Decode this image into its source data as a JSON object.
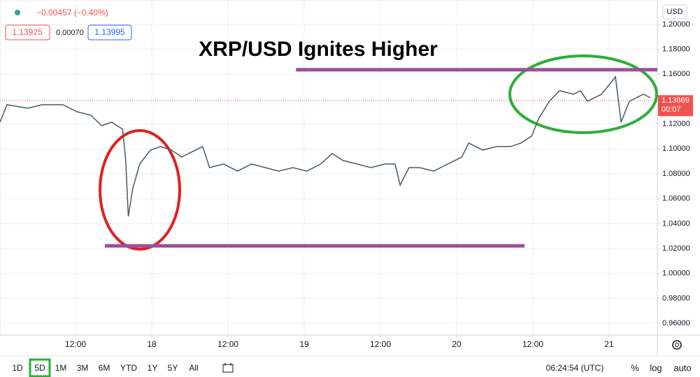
{
  "header": {
    "change": "−0.00457 (−0.40%)",
    "bid": "1.13925",
    "spread": "0.00070",
    "ask": "1.13995",
    "currency": "USD"
  },
  "chart_data": {
    "type": "line",
    "title": "XRP/USD Ignites Higher",
    "color": "#4a5a66",
    "x": [
      -23.9,
      -22.8,
      -19.5,
      -17.3,
      -14.0,
      -11.8,
      -9.6,
      -7.9,
      -6.3,
      -4.6,
      -4.1,
      -3.7,
      -3.0,
      -1.9,
      -0.2,
      1.4,
      3.1,
      4.7,
      6.9,
      8.0,
      9.1,
      11.3,
      13.5,
      15.7,
      17.9,
      20.0,
      22.2,
      24.4,
      26.6,
      28.4,
      30.1,
      32.3,
      34.5,
      36.7,
      38.3,
      39.1,
      40.5,
      42.2,
      44.4,
      46.6,
      48.8,
      49.9,
      52.1,
      54.3,
      56.5,
      58.1,
      59.8,
      60.9,
      62.6,
      64.2,
      66.4,
      67.5,
      68.6,
      70.8,
      73.0,
      73.9,
      75.2,
      77.4,
      78.5
    ],
    "values": [
      1.1215,
      1.1355,
      1.1327,
      1.1355,
      1.1355,
      1.1299,
      1.1271,
      1.1187,
      1.1215,
      1.1159,
      1.0907,
      1.0458,
      1.0682,
      1.0879,
      1.0991,
      1.1019,
      1.0991,
      1.0935,
      1.0991,
      1.1019,
      1.085,
      1.0879,
      1.0822,
      1.0879,
      1.085,
      1.0822,
      1.085,
      1.0822,
      1.0879,
      1.0963,
      1.0907,
      1.0879,
      1.085,
      1.0879,
      1.0879,
      1.071,
      1.085,
      1.085,
      1.0822,
      1.0879,
      1.0935,
      1.1047,
      1.0991,
      1.1019,
      1.1019,
      1.1047,
      1.1103,
      1.1243,
      1.1383,
      1.1467,
      1.1439,
      1.1467,
      1.1383,
      1.1439,
      1.1579,
      1.1215,
      1.1383,
      1.1439,
      1.1411
    ],
    "last_price": 1.13869,
    "countdown": "00:07",
    "levels": [
      {
        "y": 1.1636,
        "x": [
          22.7,
          79.6
        ],
        "color": "#9b4f9b"
      },
      {
        "y": 1.0222,
        "x": [
          -7.4,
          58.7
        ],
        "color": "#9b4f9b"
      }
    ],
    "xlim": [
      -23.9,
      79.6
    ],
    "xticks": [
      {
        "value": -12,
        "label": "12:00"
      },
      {
        "value": 0,
        "label": "18"
      },
      {
        "value": 12,
        "label": "12:00"
      },
      {
        "value": 24,
        "label": "19"
      },
      {
        "value": 36,
        "label": "12:00"
      },
      {
        "value": 48,
        "label": "20"
      },
      {
        "value": 60,
        "label": "12:00"
      },
      {
        "value": 72,
        "label": "21"
      }
    ],
    "ylim": [
      0.9505,
      1.2196
    ],
    "yticks": [
      {
        "value": 0.96,
        "label": "0.96000"
      },
      {
        "value": 0.98,
        "label": "0.98000"
      },
      {
        "value": 1.0,
        "label": "1.00000"
      },
      {
        "value": 1.02,
        "label": "1.02000"
      },
      {
        "value": 1.04,
        "label": "1.04000"
      },
      {
        "value": 1.06,
        "label": "1.06000"
      },
      {
        "value": 1.08,
        "label": "1.08000"
      },
      {
        "value": 1.1,
        "label": "1.10000"
      },
      {
        "value": 1.12,
        "label": "1.12000"
      },
      {
        "value": 1.14,
        "label": "1.14000"
      },
      {
        "value": 1.16,
        "label": "1.16000"
      },
      {
        "value": 1.18,
        "label": "1.18000"
      },
      {
        "value": 1.2,
        "label": "1.20000"
      }
    ],
    "grid": true
  },
  "toolbar": {
    "ranges": [
      "1D",
      "5D",
      "1M",
      "3M",
      "6M",
      "YTD",
      "1Y",
      "5Y",
      "All"
    ],
    "clock": "06:24:54 (UTC)",
    "scale_options": [
      "%",
      "log",
      "auto"
    ]
  }
}
